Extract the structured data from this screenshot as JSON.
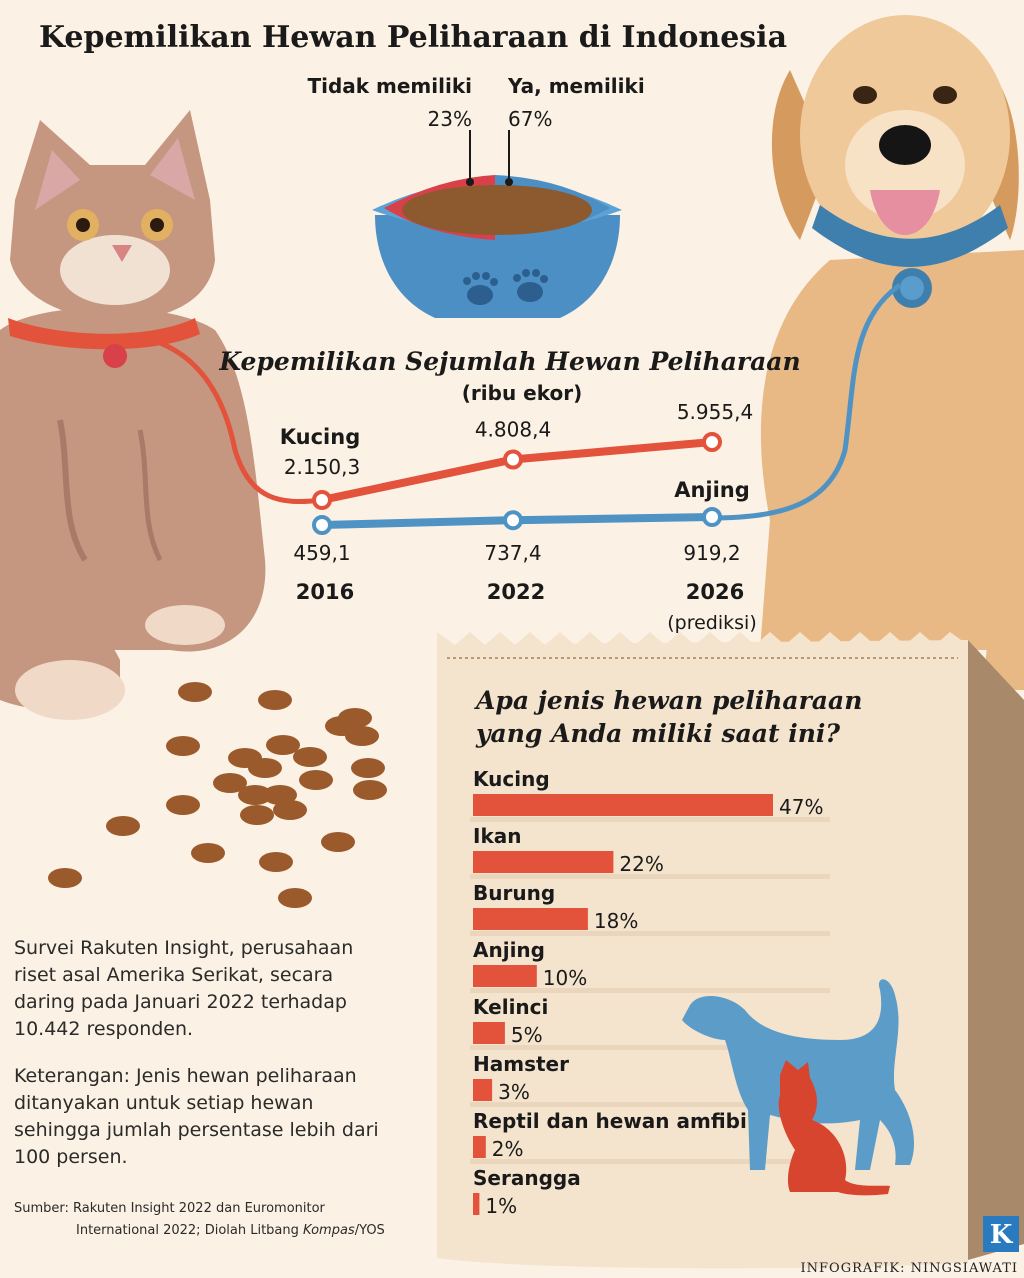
{
  "title": "Kepemilikan Hewan Peliharaan di Indonesia",
  "ownership": {
    "no_label": "Tidak memiliki",
    "no_value": "23%",
    "yes_label": "Ya, memiliki",
    "yes_value": "67%"
  },
  "trend": {
    "title": "Kepemilikan Sejumlah Hewan Peliharaan",
    "unit": "(ribu ekor)",
    "cat_label": "Kucing",
    "dog_label": "Anjing",
    "years": [
      "2016",
      "2022",
      "2026"
    ],
    "prediction_note": "(prediksi)"
  },
  "survey": {
    "question_line1": "Apa jenis hewan peliharaan",
    "question_line2": "yang Anda miliki saat ini?"
  },
  "notes": {
    "p1": "Survei Rakuten Insight, perusahaan riset asal Amerika Serikat, secara daring pada Januari 2022 terhadap 10.442 responden.",
    "p2": "Keterangan: Jenis hewan peliharaan ditanyakan untuk setiap hewan sehingga jumlah persentase lebih dari 100 persen.",
    "source_line1": "Sumber: Rakuten Insight 2022 dan Euromonitor",
    "source_line2_a": "International 2022; Diolah Litbang ",
    "source_line2_b": "Kompas",
    "source_line2_c": "/YOS"
  },
  "credit": "INFOGRAFIK: NINGSIAWATI",
  "logo_letter": "K",
  "colors": {
    "cat_line": "#e3523b",
    "dog_line": "#4e93c4",
    "bar": "#e3523b",
    "bag": "#f4e3cd",
    "bag_side": "#a88a6a"
  },
  "chart_data": [
    {
      "type": "pie",
      "title": "",
      "categories": [
        "Tidak memiliki",
        "Ya, memiliki"
      ],
      "values": [
        23,
        67
      ],
      "labels": [
        "23%",
        "67%"
      ]
    },
    {
      "type": "line",
      "title": "Kepemilikan Sejumlah Hewan Peliharaan",
      "unit": "(ribu ekor)",
      "x": [
        "2016",
        "2022",
        "2026"
      ],
      "series": [
        {
          "name": "Kucing",
          "values": [
            2150.3,
            4808.4,
            5955.4
          ],
          "labels": [
            "2.150,3",
            "4.808,4",
            "5.955,4"
          ]
        },
        {
          "name": "Anjing",
          "values": [
            459.1,
            737.4,
            919.2
          ],
          "labels": [
            "459,1",
            "737,4",
            "919,2"
          ]
        }
      ]
    },
    {
      "type": "bar",
      "title": "Apa jenis hewan peliharaan yang Anda miliki saat ini?",
      "categories": [
        "Kucing",
        "Ikan",
        "Burung",
        "Anjing",
        "Kelinci",
        "Hamster",
        "Reptil dan hewan amfibi",
        "Serangga"
      ],
      "values": [
        47,
        22,
        18,
        10,
        5,
        3,
        2,
        1
      ],
      "labels": [
        "47%",
        "22%",
        "18%",
        "10%",
        "5%",
        "3%",
        "2%",
        "1%"
      ]
    }
  ]
}
